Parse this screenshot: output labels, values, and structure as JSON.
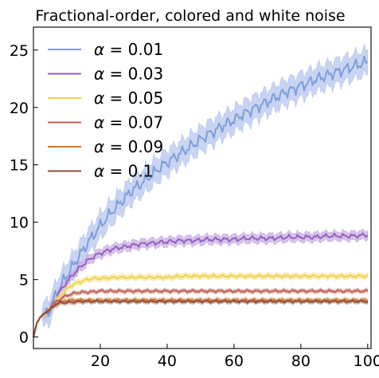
{
  "chart_data": {
    "type": "line",
    "title": "Fractional-order, colored and white noise",
    "xlabel": "",
    "ylabel": "",
    "xlim": [
      0,
      101
    ],
    "ylim": [
      -1,
      27
    ],
    "xticks": [
      20,
      40,
      60,
      80,
      100
    ],
    "yticks": [
      0,
      5,
      10,
      15,
      20,
      25
    ],
    "grid": false,
    "legend_position": "upper-left",
    "band": "shaded uncertainty band around each mean curve",
    "series": [
      {
        "name": "α = 0.01",
        "legend_symbol": "α",
        "legend_value": "= 0.01",
        "color": "#7f9fdc",
        "band_color": "#b5c6ec",
        "points": [
          [
            0,
            0
          ],
          [
            1,
            1.2
          ],
          [
            2,
            1.7
          ],
          [
            3,
            2.0
          ],
          [
            4,
            2.2
          ],
          [
            5,
            2.4
          ],
          [
            6,
            3.2
          ],
          [
            7,
            3.9
          ],
          [
            8,
            4.4
          ],
          [
            9,
            4.9
          ],
          [
            10,
            5.4
          ],
          [
            12,
            6.3
          ],
          [
            14,
            7.2
          ],
          [
            16,
            8.1
          ],
          [
            18,
            8.9
          ],
          [
            20,
            9.7
          ],
          [
            22,
            10.4
          ],
          [
            24,
            11.1
          ],
          [
            26,
            11.7
          ],
          [
            28,
            12.3
          ],
          [
            30,
            12.9
          ],
          [
            32,
            13.3
          ],
          [
            34,
            13.8
          ],
          [
            36,
            14.3
          ],
          [
            38,
            14.8
          ],
          [
            40,
            15.2
          ],
          [
            42,
            15.6
          ],
          [
            44,
            16.0
          ],
          [
            46,
            16.4
          ],
          [
            48,
            16.8
          ],
          [
            50,
            17.2
          ],
          [
            52,
            17.6
          ],
          [
            54,
            17.9
          ],
          [
            56,
            18.3
          ],
          [
            58,
            18.6
          ],
          [
            60,
            18.9
          ],
          [
            62,
            19.3
          ],
          [
            64,
            19.6
          ],
          [
            66,
            19.9
          ],
          [
            68,
            20.2
          ],
          [
            70,
            20.5
          ],
          [
            72,
            20.8
          ],
          [
            74,
            21.1
          ],
          [
            76,
            21.4
          ],
          [
            78,
            21.6
          ],
          [
            80,
            21.9
          ],
          [
            82,
            22.1
          ],
          [
            84,
            22.4
          ],
          [
            86,
            22.6
          ],
          [
            88,
            22.8
          ],
          [
            90,
            23.0
          ],
          [
            92,
            23.2
          ],
          [
            94,
            23.4
          ],
          [
            96,
            23.6
          ],
          [
            98,
            23.8
          ],
          [
            100,
            24.0
          ]
        ]
      },
      {
        "name": "α = 0.03",
        "legend_symbol": "α",
        "legend_value": "= 0.03",
        "color": "#9461c4",
        "band_color": "#c8aee2",
        "points": [
          [
            0,
            0
          ],
          [
            1,
            1.2
          ],
          [
            2,
            1.7
          ],
          [
            3,
            2.0
          ],
          [
            4,
            2.2
          ],
          [
            5,
            2.4
          ],
          [
            6,
            3.0
          ],
          [
            7,
            3.5
          ],
          [
            8,
            4.0
          ],
          [
            9,
            4.4
          ],
          [
            10,
            4.8
          ],
          [
            12,
            5.5
          ],
          [
            14,
            6.1
          ],
          [
            16,
            6.6
          ],
          [
            18,
            7.0
          ],
          [
            20,
            7.3
          ],
          [
            24,
            7.7
          ],
          [
            28,
            7.9
          ],
          [
            32,
            8.1
          ],
          [
            36,
            8.2
          ],
          [
            40,
            8.3
          ],
          [
            44,
            8.4
          ],
          [
            48,
            8.4
          ],
          [
            52,
            8.5
          ],
          [
            56,
            8.5
          ],
          [
            60,
            8.5
          ],
          [
            64,
            8.6
          ],
          [
            68,
            8.6
          ],
          [
            72,
            8.6
          ],
          [
            76,
            8.7
          ],
          [
            80,
            8.7
          ],
          [
            84,
            8.7
          ],
          [
            88,
            8.8
          ],
          [
            92,
            8.8
          ],
          [
            96,
            8.8
          ],
          [
            100,
            8.9
          ]
        ]
      },
      {
        "name": "α = 0.05",
        "legend_symbol": "α",
        "legend_value": "= 0.05",
        "color": "#f0d24e",
        "band_color": "#f8e8a2",
        "points": [
          [
            0,
            0
          ],
          [
            1,
            1.2
          ],
          [
            2,
            1.7
          ],
          [
            3,
            2.0
          ],
          [
            4,
            2.2
          ],
          [
            5,
            2.4
          ],
          [
            6,
            2.9
          ],
          [
            7,
            3.3
          ],
          [
            8,
            3.6
          ],
          [
            9,
            3.9
          ],
          [
            10,
            4.2
          ],
          [
            12,
            4.6
          ],
          [
            14,
            4.8
          ],
          [
            16,
            5.0
          ],
          [
            18,
            5.1
          ],
          [
            20,
            5.1
          ],
          [
            25,
            5.2
          ],
          [
            30,
            5.2
          ],
          [
            35,
            5.2
          ],
          [
            40,
            5.2
          ],
          [
            45,
            5.3
          ],
          [
            50,
            5.3
          ],
          [
            55,
            5.3
          ],
          [
            60,
            5.3
          ],
          [
            65,
            5.3
          ],
          [
            70,
            5.3
          ],
          [
            75,
            5.3
          ],
          [
            80,
            5.3
          ],
          [
            85,
            5.3
          ],
          [
            90,
            5.3
          ],
          [
            95,
            5.3
          ],
          [
            100,
            5.3
          ]
        ]
      },
      {
        "name": "α = 0.07",
        "legend_symbol": "α",
        "legend_value": "= 0.07",
        "color": "#c0605a",
        "band_color": "#e0b0ad",
        "points": [
          [
            0,
            0
          ],
          [
            1,
            1.2
          ],
          [
            2,
            1.7
          ],
          [
            3,
            2.0
          ],
          [
            4,
            2.2
          ],
          [
            5,
            2.4
          ],
          [
            6,
            2.8
          ],
          [
            7,
            3.1
          ],
          [
            8,
            3.3
          ],
          [
            9,
            3.5
          ],
          [
            10,
            3.6
          ],
          [
            12,
            3.8
          ],
          [
            14,
            3.9
          ],
          [
            16,
            3.9
          ],
          [
            20,
            4.0
          ],
          [
            30,
            4.0
          ],
          [
            40,
            4.0
          ],
          [
            50,
            4.0
          ],
          [
            60,
            4.0
          ],
          [
            70,
            4.0
          ],
          [
            80,
            4.0
          ],
          [
            90,
            4.0
          ],
          [
            100,
            4.0
          ]
        ]
      },
      {
        "name": "α = 0.09",
        "legend_symbol": "α",
        "legend_value": "= 0.09",
        "color": "#d0742e",
        "band_color": "#ecb98f",
        "points": [
          [
            0,
            0
          ],
          [
            1,
            1.2
          ],
          [
            2,
            1.7
          ],
          [
            3,
            2.0
          ],
          [
            4,
            2.2
          ],
          [
            5,
            2.4
          ],
          [
            6,
            2.7
          ],
          [
            7,
            2.9
          ],
          [
            8,
            3.0
          ],
          [
            9,
            3.1
          ],
          [
            10,
            3.2
          ],
          [
            14,
            3.2
          ],
          [
            20,
            3.2
          ],
          [
            30,
            3.2
          ],
          [
            40,
            3.2
          ],
          [
            50,
            3.2
          ],
          [
            60,
            3.2
          ],
          [
            70,
            3.2
          ],
          [
            80,
            3.2
          ],
          [
            90,
            3.2
          ],
          [
            100,
            3.2
          ]
        ]
      },
      {
        "name": "α = 0.1",
        "legend_symbol": "α",
        "legend_value": "= 0.1",
        "color": "#8b4f3f",
        "band_color": "#c9a79c",
        "points": [
          [
            0,
            0
          ],
          [
            1,
            1.2
          ],
          [
            2,
            1.7
          ],
          [
            3,
            2.0
          ],
          [
            4,
            2.2
          ],
          [
            5,
            2.4
          ],
          [
            6,
            2.7
          ],
          [
            7,
            2.9
          ],
          [
            8,
            3.0
          ],
          [
            9,
            3.0
          ],
          [
            10,
            3.0
          ],
          [
            14,
            3.1
          ],
          [
            20,
            3.1
          ],
          [
            30,
            3.1
          ],
          [
            40,
            3.1
          ],
          [
            50,
            3.1
          ],
          [
            60,
            3.1
          ],
          [
            70,
            3.1
          ],
          [
            80,
            3.1
          ],
          [
            90,
            3.1
          ],
          [
            100,
            3.1
          ]
        ]
      }
    ]
  }
}
